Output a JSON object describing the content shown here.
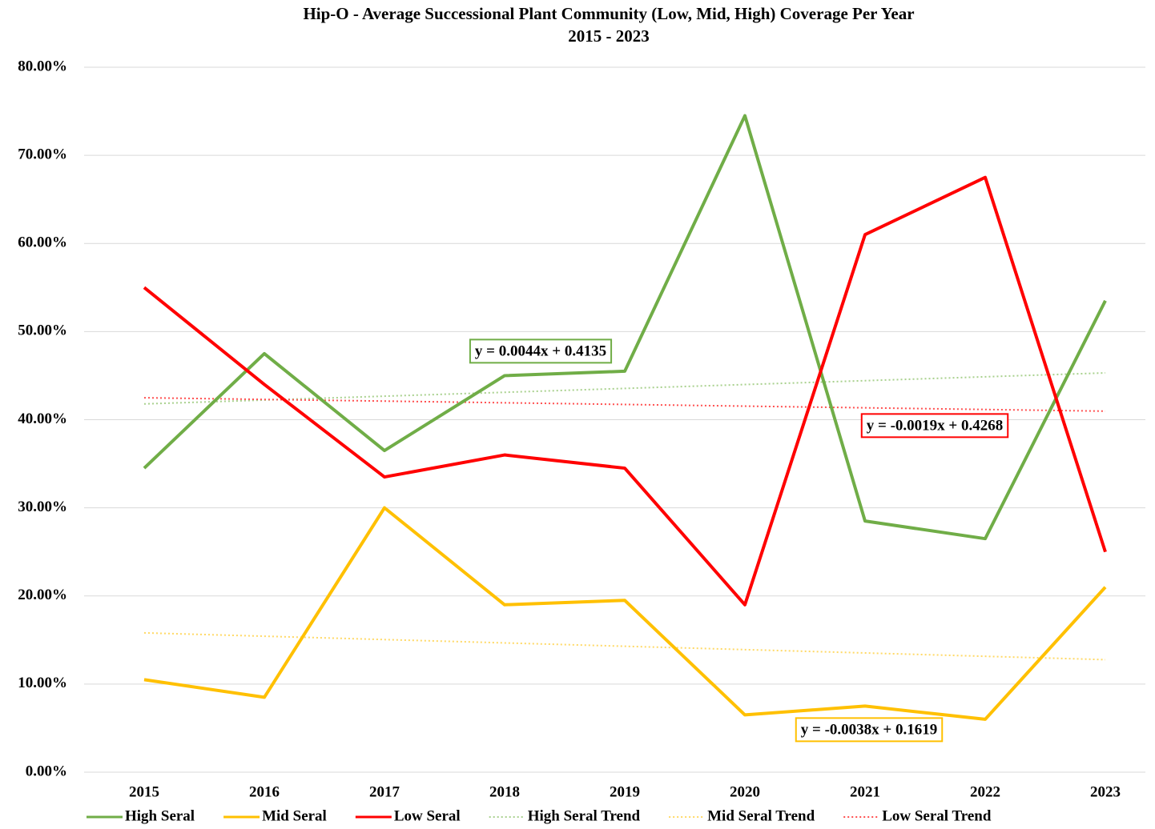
{
  "chart_data": {
    "type": "line",
    "title": "Hip-O - Average Successional Plant Community (Low, Mid, High) Coverage Per Year",
    "subtitle": "2015 - 2023",
    "categories": [
      "2015",
      "2016",
      "2017",
      "2018",
      "2019",
      "2020",
      "2021",
      "2022",
      "2023"
    ],
    "series": [
      {
        "name": "High Seral",
        "color": "#70ad47",
        "style": "solid",
        "values": [
          34.5,
          47.5,
          36.5,
          45,
          45.5,
          74.5,
          28.5,
          26.5,
          53.5
        ]
      },
      {
        "name": "Mid Seral",
        "color": "#ffc000",
        "style": "solid",
        "values": [
          10.5,
          8.5,
          30,
          19,
          19.5,
          6.5,
          7.5,
          6,
          21
        ]
      },
      {
        "name": "Low Seral",
        "color": "#ff0000",
        "style": "solid",
        "values": [
          55,
          44,
          33.5,
          36,
          34.5,
          19,
          61,
          67.5,
          25
        ]
      },
      {
        "name": "High Seral Trend",
        "color": "#a9d18e",
        "style": "dotted",
        "values": [
          41.79,
          42.23,
          42.67,
          43.11,
          43.55,
          43.99,
          44.43,
          44.87,
          45.31
        ]
      },
      {
        "name": "Mid Seral Trend",
        "color": "#ffd966",
        "style": "dotted",
        "values": [
          15.81,
          15.43,
          15.05,
          14.67,
          14.29,
          13.91,
          13.53,
          13.15,
          12.77
        ]
      },
      {
        "name": "Low Seral Trend",
        "color": "#ff5050",
        "style": "dotted",
        "values": [
          42.49,
          42.3,
          42.11,
          41.92,
          41.73,
          41.54,
          41.35,
          41.16,
          40.97
        ]
      }
    ],
    "annotations": [
      {
        "text": "y = 0.0044x + 0.4135",
        "color": "#70ad47"
      },
      {
        "text": "y = -0.0019x + 0.4268",
        "color": "#ff0000"
      },
      {
        "text": "y = -0.0038x + 0.1619",
        "color": "#ffc000"
      }
    ],
    "ylim": [
      0,
      80
    ],
    "yticks": [
      {
        "value": 0,
        "label": "0.00%"
      },
      {
        "value": 10,
        "label": "10.00%"
      },
      {
        "value": 20,
        "label": "20.00%"
      },
      {
        "value": 30,
        "label": "30.00%"
      },
      {
        "value": 40,
        "label": "40.00%"
      },
      {
        "value": 50,
        "label": "50.00%"
      },
      {
        "value": 60,
        "label": "60.00%"
      },
      {
        "value": 70,
        "label": "70.00%"
      },
      {
        "value": 80,
        "label": "80.00%"
      }
    ],
    "grid": true,
    "legend": "bottom"
  }
}
